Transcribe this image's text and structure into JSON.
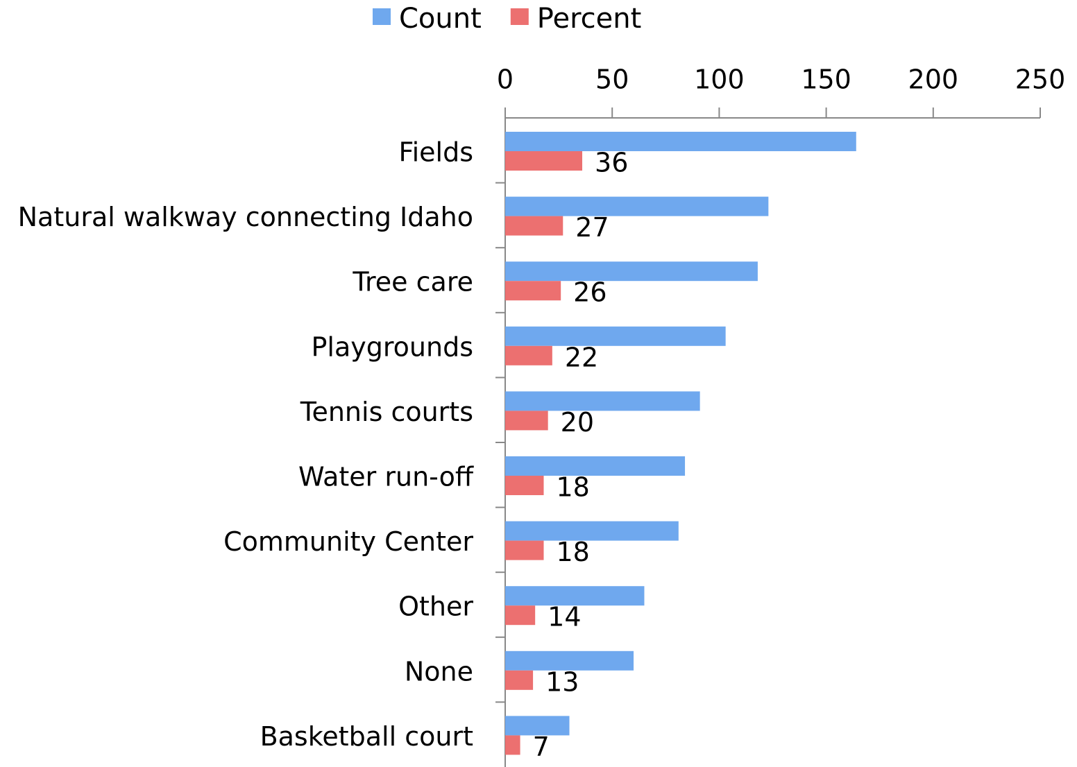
{
  "chart_data": {
    "type": "bar",
    "orientation": "horizontal",
    "categories": [
      "Fields",
      "Natural walkway connecting Idaho",
      "Tree care",
      "Playgrounds",
      "Tennis courts",
      "Water run-off",
      "Community Center",
      "Other",
      "None",
      "Basketball court"
    ],
    "series": [
      {
        "name": "Count",
        "color": "#6fa8ee",
        "values": [
          164,
          123,
          118,
          103,
          91,
          84,
          81,
          65,
          60,
          30
        ]
      },
      {
        "name": "Percent",
        "color": "#ec7070",
        "values": [
          36,
          27,
          26,
          22,
          20,
          18,
          18,
          14,
          13,
          7
        ],
        "data_labels": true
      }
    ],
    "xlim": [
      0,
      250
    ],
    "xticks": [
      0,
      50,
      100,
      150,
      200,
      250
    ],
    "legend": "top"
  }
}
